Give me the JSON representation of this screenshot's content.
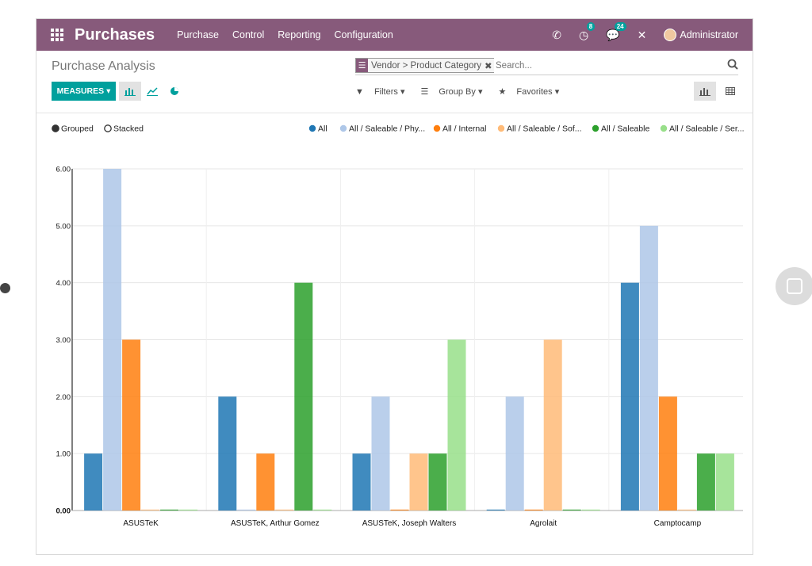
{
  "navbar": {
    "brand": "Purchases",
    "menu": [
      "Purchase",
      "Control",
      "Reporting",
      "Configuration"
    ],
    "activity_badge": "8",
    "messages_badge": "24",
    "user": "Administrator"
  },
  "control_panel": {
    "title": "Purchase Analysis",
    "facet": "Vendor > Product Category",
    "search_placeholder": "Search...",
    "measures_label": "MEASURES ▾",
    "filters_label": "Filters ▾",
    "groupby_label": "Group By ▾",
    "favorites_label": "Favorites ▾"
  },
  "colors": {
    "navbar": "#875a7b",
    "accent": "#00a09d"
  },
  "chart_data": {
    "type": "bar",
    "mode_options": [
      "Grouped",
      "Stacked"
    ],
    "mode_selected": "Grouped",
    "categories": [
      "ASUSTeK",
      "ASUSTeK, Arthur Gomez",
      "ASUSTeK, Joseph Walters",
      "Agrolait",
      "Camptocamp"
    ],
    "series": [
      {
        "name": "All",
        "color": "#1f77b4",
        "values": [
          1,
          2,
          1,
          0,
          4
        ]
      },
      {
        "name": "All / Saleable / Phy...",
        "color": "#aec7e8",
        "values": [
          6,
          0,
          2,
          2,
          5
        ]
      },
      {
        "name": "All / Internal",
        "color": "#ff7f0e",
        "values": [
          3,
          1,
          0,
          0,
          2
        ]
      },
      {
        "name": "All / Saleable / Sof...",
        "color": "#ffbb78",
        "values": [
          0,
          0,
          1,
          3,
          0
        ]
      },
      {
        "name": "All / Saleable",
        "color": "#2ca02c",
        "values": [
          0,
          4,
          1,
          0,
          1
        ]
      },
      {
        "name": "All / Saleable / Ser...",
        "color": "#98df8a",
        "values": [
          0,
          0,
          3,
          0,
          1
        ]
      }
    ],
    "ylim": [
      0,
      6
    ],
    "yticks": [
      "0.00",
      "1.00",
      "2.00",
      "3.00",
      "4.00",
      "5.00",
      "6.00"
    ]
  }
}
